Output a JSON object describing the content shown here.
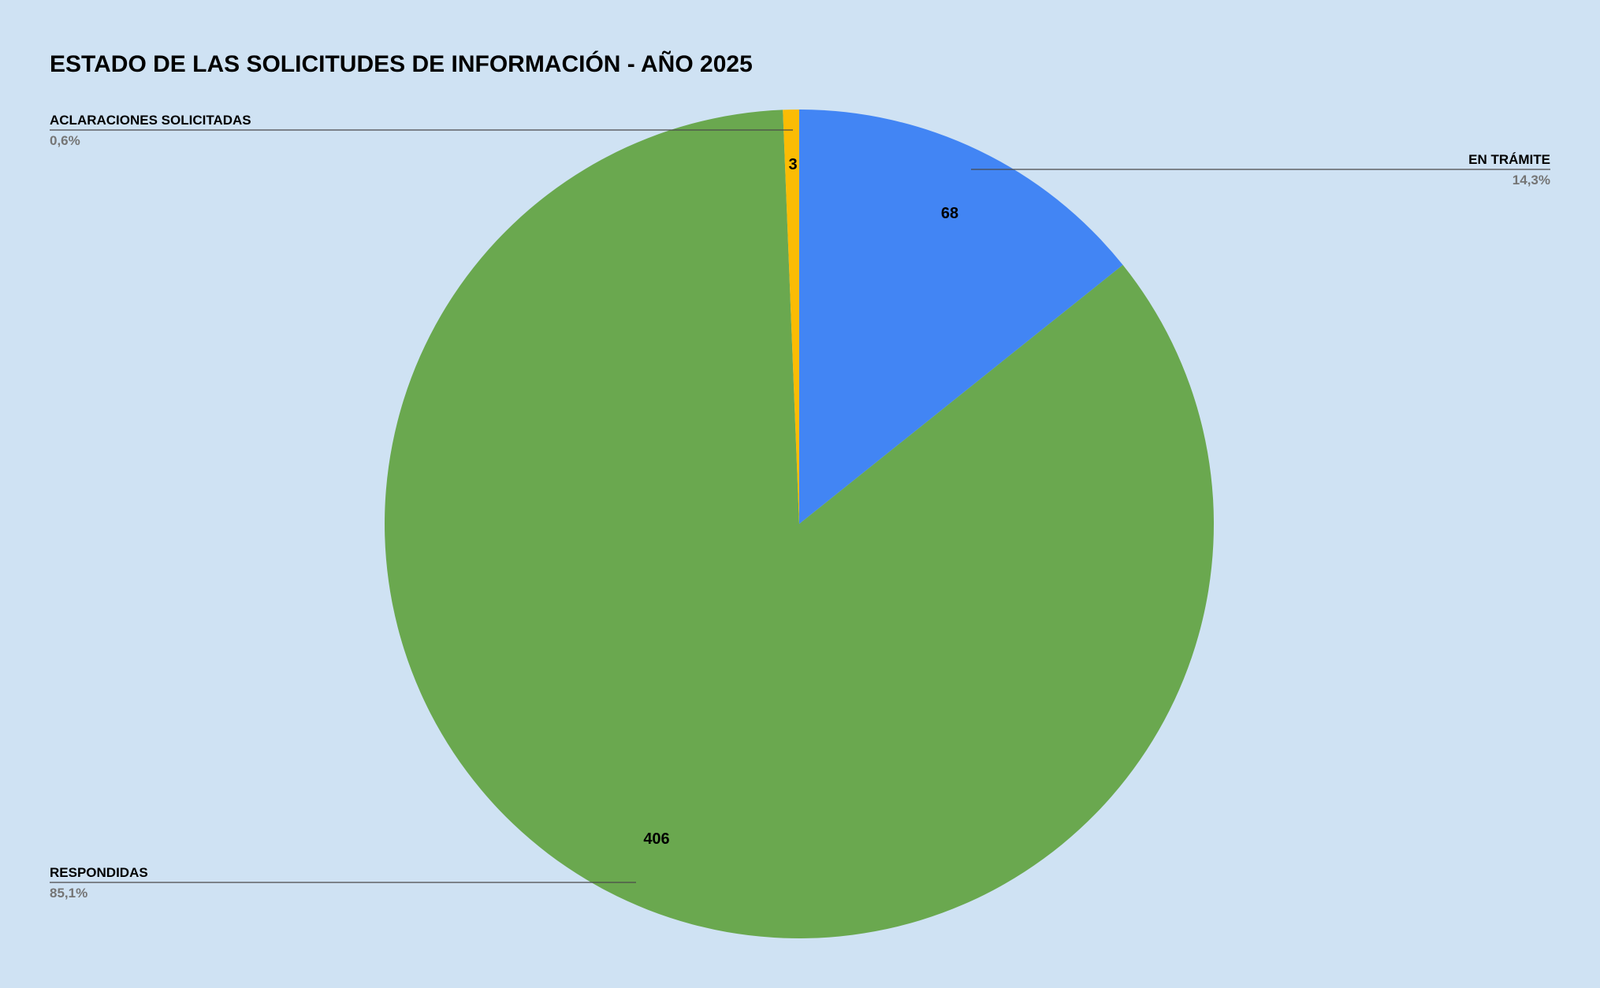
{
  "chart_data": {
    "type": "pie",
    "title": "ESTADO DE LAS SOLICITUDES DE INFORMACIÓN - AÑO 2025",
    "start_angle_deg": 0,
    "direction": "clockwise",
    "slices": [
      {
        "label": "EN TRÁMITE",
        "value": 68,
        "value_label": "68",
        "percent_label": "14,3%",
        "color": "#4285f4"
      },
      {
        "label": "RESPONDIDAS",
        "value": 406,
        "value_label": "406",
        "percent_label": "85,1%",
        "color": "#6aa84f"
      },
      {
        "label": "ACLARACIONES SOLICITADAS",
        "value": 3,
        "value_label": "3",
        "percent_label": "0,6%",
        "color": "#fbbc04"
      }
    ],
    "legend": "callouts",
    "background": "#cfe2f3"
  }
}
